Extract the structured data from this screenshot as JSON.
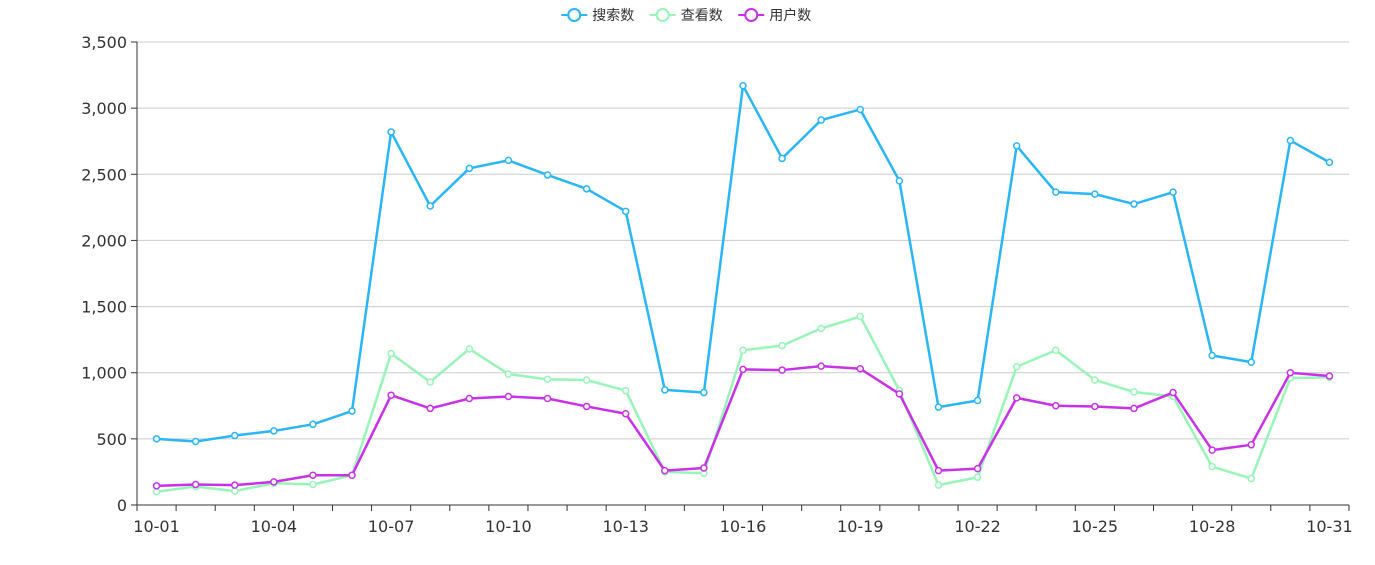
{
  "chart_data": {
    "type": "line",
    "x": [
      "10-01",
      "10-02",
      "10-03",
      "10-04",
      "10-05",
      "10-06",
      "10-07",
      "10-08",
      "10-09",
      "10-10",
      "10-11",
      "10-12",
      "10-13",
      "10-14",
      "10-15",
      "10-16",
      "10-17",
      "10-18",
      "10-19",
      "10-20",
      "10-21",
      "10-22",
      "10-23",
      "10-24",
      "10-25",
      "10-26",
      "10-27",
      "10-28",
      "10-29",
      "10-30",
      "10-31"
    ],
    "x_tick_labels": [
      "10-01",
      "10-04",
      "10-07",
      "10-10",
      "10-13",
      "10-16",
      "10-19",
      "10-22",
      "10-25",
      "10-28",
      "10-31"
    ],
    "ylim": [
      0,
      3500
    ],
    "y_tick_labels": [
      "0",
      "500",
      "1,000",
      "1,500",
      "2,000",
      "2,500",
      "3,000",
      "3,500"
    ],
    "grid": true,
    "legend_position": "top-center",
    "series": [
      {
        "name": "搜索数",
        "color": "#29b6f6",
        "values": [
          500,
          480,
          525,
          560,
          610,
          710,
          2820,
          2260,
          2545,
          2605,
          2495,
          2390,
          2220,
          870,
          850,
          3170,
          2620,
          2910,
          2990,
          2450,
          740,
          790,
          2715,
          2365,
          2350,
          2275,
          2365,
          1130,
          1080,
          2755,
          2590
        ]
      },
      {
        "name": "查看数",
        "color": "#98f5b8",
        "values": [
          100,
          140,
          105,
          165,
          155,
          225,
          1145,
          930,
          1180,
          990,
          950,
          945,
          865,
          250,
          240,
          1170,
          1205,
          1335,
          1425,
          865,
          150,
          210,
          1045,
          1170,
          945,
          855,
          820,
          290,
          200,
          960,
          965
        ]
      },
      {
        "name": "用户数",
        "color": "#c930e8",
        "values": [
          145,
          155,
          150,
          175,
          225,
          225,
          830,
          730,
          805,
          820,
          805,
          745,
          690,
          260,
          280,
          1025,
          1020,
          1050,
          1030,
          840,
          260,
          275,
          810,
          750,
          745,
          730,
          850,
          415,
          455,
          1000,
          975
        ]
      }
    ]
  }
}
